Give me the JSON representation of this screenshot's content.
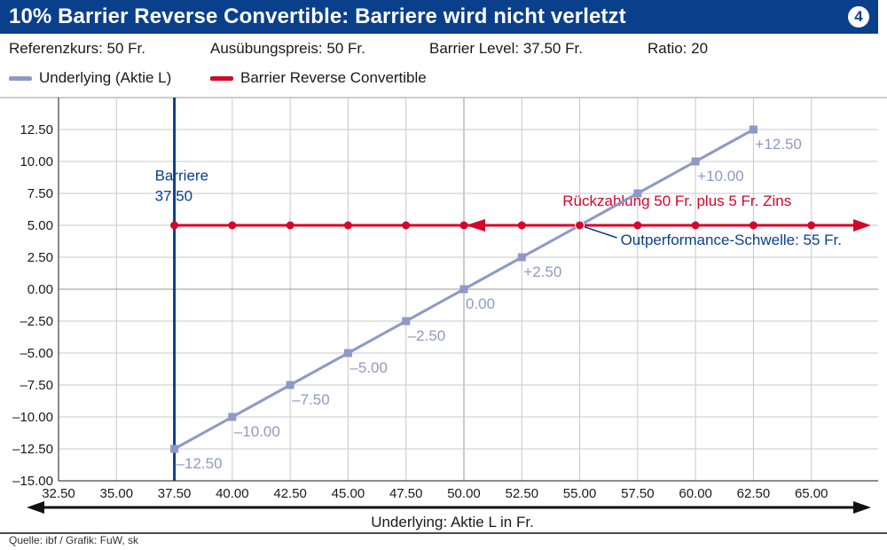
{
  "header": {
    "title": "10% Barrier Reverse Convertible: Barriere wird nicht verletzt",
    "badge": "4"
  },
  "params": {
    "reference": "Referenzkurs: 50 Fr.",
    "strike": "Ausübungspreis: 50 Fr.",
    "barrier": "Barrier Level: 37.50 Fr.",
    "ratio": "Ratio: 20"
  },
  "legend": {
    "underlying": "Underlying (Aktie L)",
    "brc": "Barrier Reverse Convertible"
  },
  "colors": {
    "title_bg": "#0a3f8c",
    "underlying": "#8e99c8",
    "brc": "#d4062a",
    "barrier": "#0a3f8c",
    "grid": "#c8c8c8"
  },
  "chart_data": {
    "type": "line",
    "xlabel": "Underlying: Aktie L in Fr.",
    "ylabel": "",
    "xlim": [
      32.5,
      67.5
    ],
    "ylim": [
      -15,
      15
    ],
    "x_ticks": [
      "32.50",
      "35.00",
      "37.50",
      "40.00",
      "42.50",
      "45.00",
      "47.50",
      "50.00",
      "52.50",
      "55.00",
      "57.50",
      "60.00",
      "62.50",
      "65.00"
    ],
    "y_ticks": [
      "12.50",
      "10.00",
      "7.50",
      "5.00",
      "2.50",
      "0.00",
      "–2.50",
      "–5.00",
      "–7.50",
      "–10.00",
      "–12.50",
      "–15.00"
    ],
    "series": [
      {
        "name": "Underlying (Aktie L)",
        "x": [
          37.5,
          40,
          42.5,
          45,
          47.5,
          50,
          52.5,
          55,
          57.5,
          60,
          62.5
        ],
        "values": [
          -12.5,
          -10,
          -7.5,
          -5,
          -2.5,
          0,
          2.5,
          5,
          7.5,
          10,
          12.5
        ],
        "labels": [
          {
            "x": 37.5,
            "y": -12.5,
            "text": "–12.50"
          },
          {
            "x": 40,
            "y": -10,
            "text": "–10.00"
          },
          {
            "x": 42.5,
            "y": -7.5,
            "text": "–7.50"
          },
          {
            "x": 45,
            "y": -5,
            "text": "–5.00"
          },
          {
            "x": 47.5,
            "y": -2.5,
            "text": "–2.50"
          },
          {
            "x": 50,
            "y": 0,
            "text": "0.00"
          },
          {
            "x": 52.5,
            "y": 2.5,
            "text": "+2.50"
          },
          {
            "x": 60,
            "y": 10,
            "text": "+10.00"
          },
          {
            "x": 62.5,
            "y": 12.5,
            "text": "+12.50"
          }
        ]
      },
      {
        "name": "Barrier Reverse Convertible",
        "x": [
          37.5,
          40,
          42.5,
          45,
          47.5,
          50,
          52.5,
          55,
          57.5,
          60,
          62.5,
          65
        ],
        "values": [
          5,
          5,
          5,
          5,
          5,
          5,
          5,
          5,
          5,
          5,
          5,
          5
        ]
      }
    ],
    "barrier": {
      "x": 37.5,
      "label_line1": "Barriere",
      "label_line2": "37.50"
    },
    "annotations": {
      "repayment": "Rückzahlung 50 Fr. plus 5 Fr. Zins",
      "outperformance": "Outperformance-Schwelle: 55 Fr.",
      "outperformance_point": {
        "x": 55,
        "y": 5
      }
    }
  },
  "source": "Quelle: ibf / Grafik: FuW, sk"
}
